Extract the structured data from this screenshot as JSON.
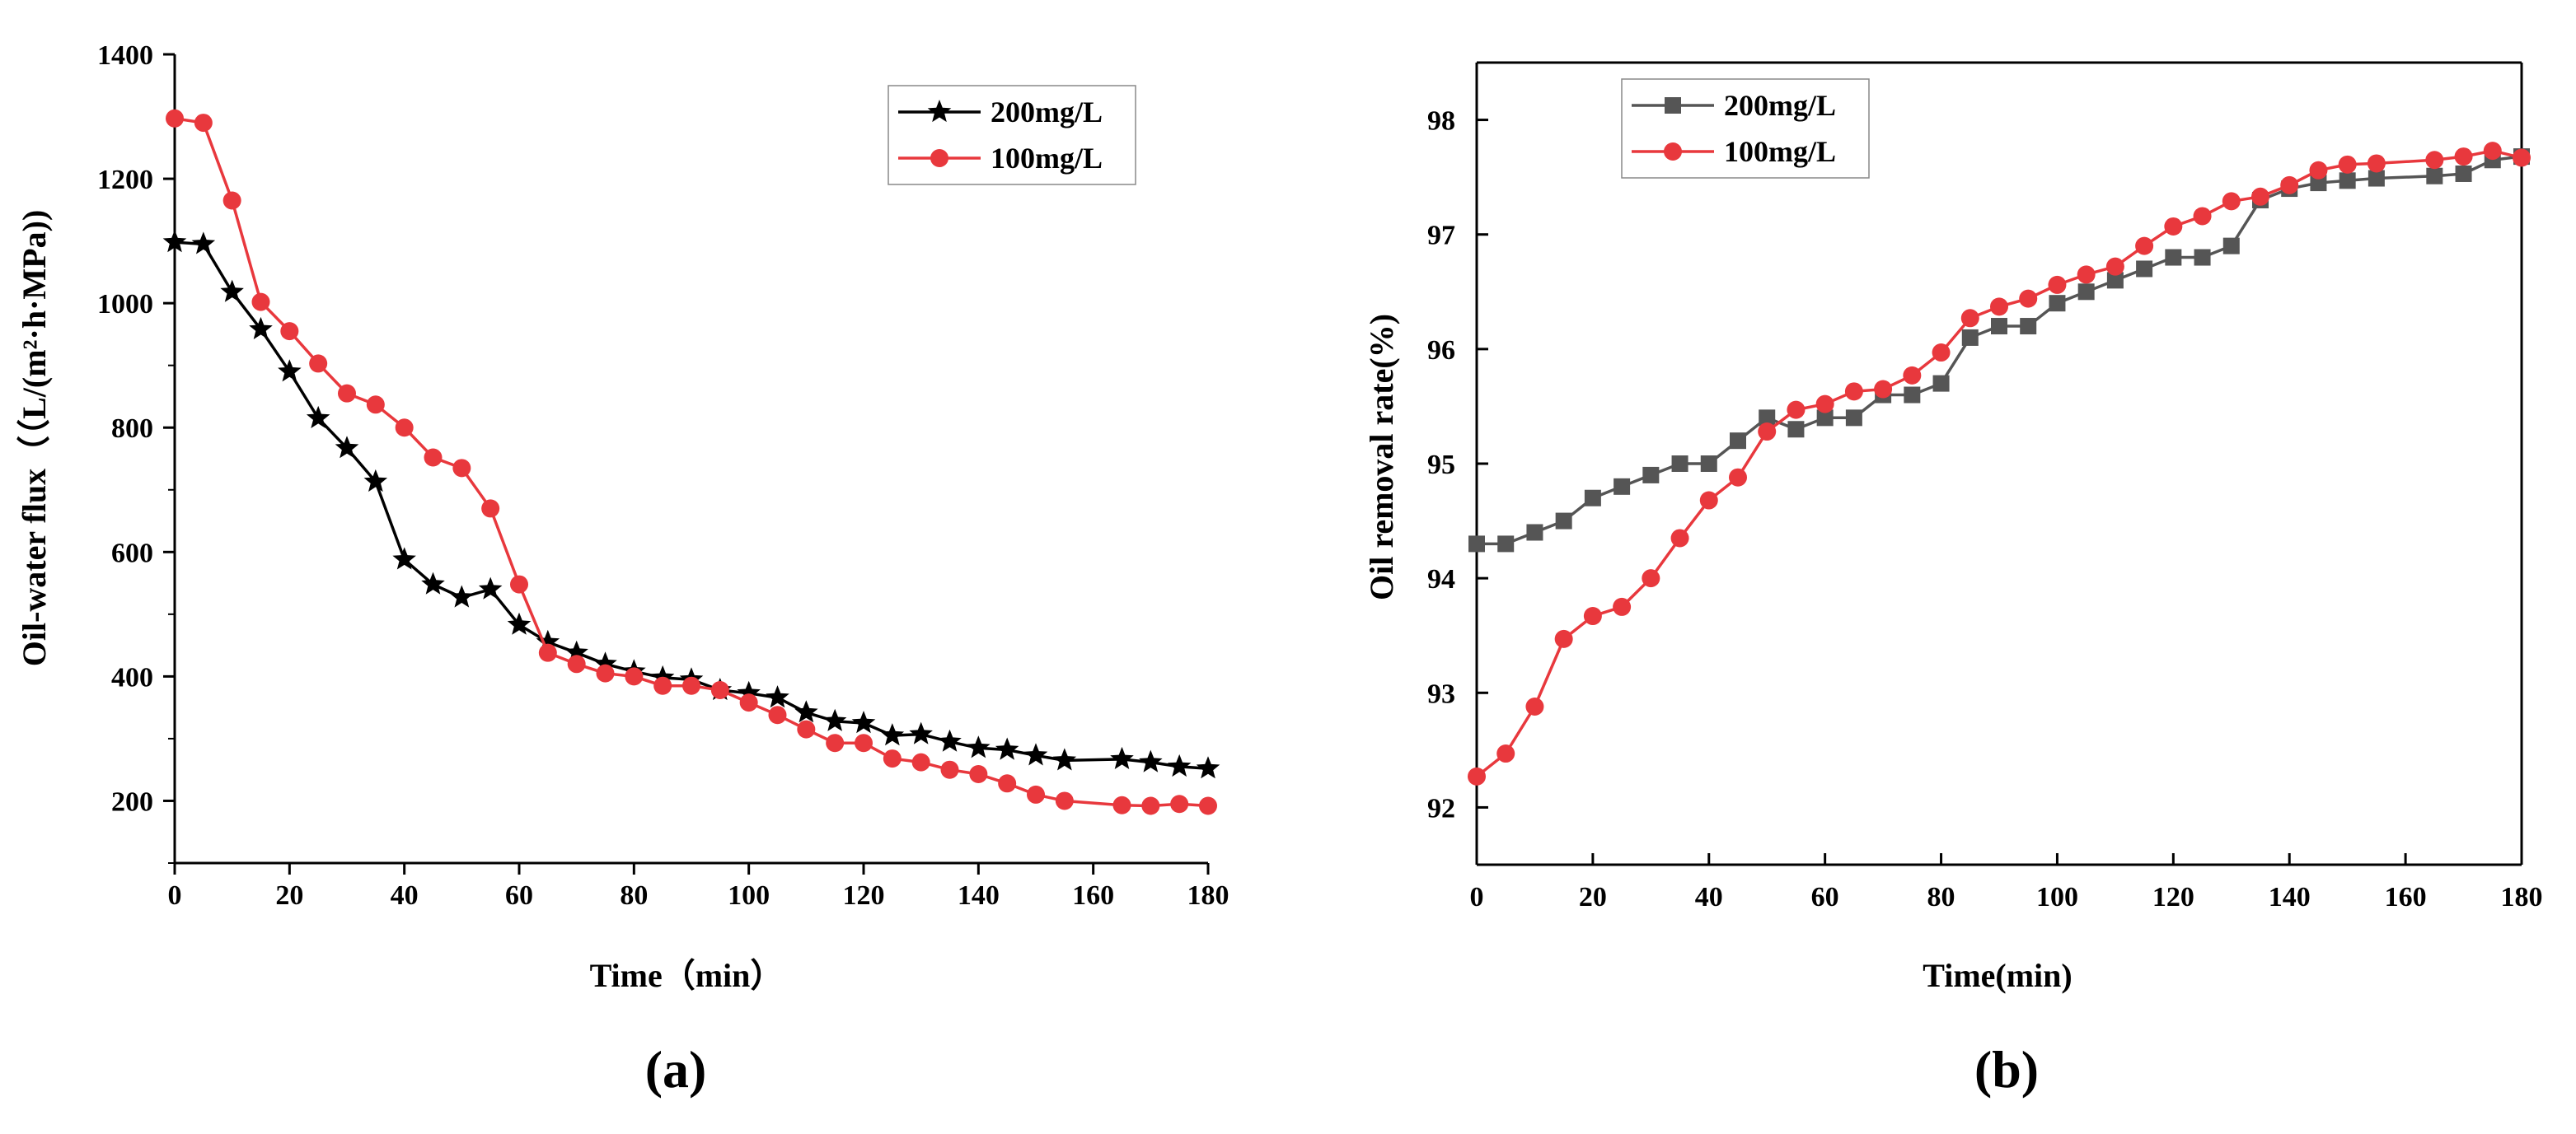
{
  "chart_data": [
    {
      "type": "line",
      "panel_label": "(a)",
      "xlabel": "Time（min）",
      "ylabel": "Oil-water flux（（L/(m²·h·MPa))",
      "xlim": [
        0,
        180
      ],
      "ylim": [
        100,
        1400
      ],
      "xticks": [
        "0",
        "20",
        "40",
        "60",
        "80",
        "100",
        "120",
        "140",
        "160",
        "180"
      ],
      "yticks": [
        "200",
        "400",
        "600",
        "800",
        "1000",
        "1200",
        "1400"
      ],
      "legend_position": "top-right",
      "grid": false,
      "series": [
        {
          "name": "200mg/L",
          "color": "#000000",
          "marker": "star",
          "points": [
            [
              0,
              1098
            ],
            [
              5,
              1095
            ],
            [
              10,
              1018
            ],
            [
              15,
              958
            ],
            [
              20,
              890
            ],
            [
              25,
              815
            ],
            [
              30,
              767
            ],
            [
              35,
              713
            ],
            [
              40,
              588
            ],
            [
              45,
              548
            ],
            [
              50,
              527
            ],
            [
              55,
              540
            ],
            [
              60,
              483
            ],
            [
              65,
              455
            ],
            [
              70,
              438
            ],
            [
              75,
              420
            ],
            [
              80,
              408
            ],
            [
              85,
              398
            ],
            [
              90,
              395
            ],
            [
              95,
              378
            ],
            [
              100,
              373
            ],
            [
              105,
              366
            ],
            [
              110,
              342
            ],
            [
              115,
              328
            ],
            [
              120,
              325
            ],
            [
              125,
              305
            ],
            [
              130,
              307
            ],
            [
              135,
              295
            ],
            [
              140,
              285
            ],
            [
              145,
              282
            ],
            [
              150,
              273
            ],
            [
              155,
              265
            ],
            [
              165,
              267
            ],
            [
              170,
              262
            ],
            [
              175,
              255
            ],
            [
              180,
              252
            ]
          ]
        },
        {
          "name": "100mg/L",
          "color": "#e8383d",
          "marker": "circle",
          "points": [
            [
              0,
              1297
            ],
            [
              5,
              1290
            ],
            [
              10,
              1165
            ],
            [
              15,
              1002
            ],
            [
              20,
              955
            ],
            [
              25,
              903
            ],
            [
              30,
              855
            ],
            [
              35,
              837
            ],
            [
              40,
              800
            ],
            [
              45,
              752
            ],
            [
              50,
              735
            ],
            [
              55,
              670
            ],
            [
              60,
              548
            ],
            [
              65,
              438
            ],
            [
              70,
              420
            ],
            [
              75,
              405
            ],
            [
              80,
              400
            ],
            [
              85,
              385
            ],
            [
              90,
              385
            ],
            [
              95,
              378
            ],
            [
              100,
              358
            ],
            [
              105,
              338
            ],
            [
              110,
              315
            ],
            [
              115,
              293
            ],
            [
              120,
              293
            ],
            [
              125,
              268
            ],
            [
              130,
              262
            ],
            [
              135,
              250
            ],
            [
              140,
              243
            ],
            [
              145,
              228
            ],
            [
              150,
              210
            ],
            [
              155,
              200
            ],
            [
              165,
              193
            ],
            [
              170,
              192
            ],
            [
              175,
              195
            ],
            [
              180,
              192
            ]
          ]
        }
      ]
    },
    {
      "type": "line",
      "panel_label": "(b)",
      "xlabel": "Time(min)",
      "ylabel": "Oil removal rate(%)",
      "xlim": [
        0,
        180
      ],
      "ylim": [
        91.5,
        98.5
      ],
      "xticks": [
        "0",
        "20",
        "40",
        "60",
        "80",
        "100",
        "120",
        "140",
        "160",
        "180"
      ],
      "yticks": [
        "92",
        "93",
        "94",
        "95",
        "96",
        "97",
        "98"
      ],
      "legend_position": "top-left",
      "grid": false,
      "series": [
        {
          "name": "200mg/L",
          "color": "#555555",
          "marker": "square",
          "points": [
            [
              0,
              94.3
            ],
            [
              5,
              94.3
            ],
            [
              10,
              94.4
            ],
            [
              15,
              94.5
            ],
            [
              20,
              94.7
            ],
            [
              25,
              94.8
            ],
            [
              30,
              94.9
            ],
            [
              35,
              95.0
            ],
            [
              40,
              95.0
            ],
            [
              45,
              95.2
            ],
            [
              50,
              95.4
            ],
            [
              55,
              95.3
            ],
            [
              60,
              95.4
            ],
            [
              65,
              95.4
            ],
            [
              70,
              95.6
            ],
            [
              75,
              95.6
            ],
            [
              80,
              95.7
            ],
            [
              85,
              96.1
            ],
            [
              90,
              96.2
            ],
            [
              95,
              96.2
            ],
            [
              100,
              96.4
            ],
            [
              105,
              96.5
            ],
            [
              110,
              96.6
            ],
            [
              115,
              96.7
            ],
            [
              120,
              96.8
            ],
            [
              125,
              96.8
            ],
            [
              130,
              96.9
            ],
            [
              135,
              97.3
            ],
            [
              140,
              97.4
            ],
            [
              145,
              97.45
            ],
            [
              150,
              97.47
            ],
            [
              155,
              97.49
            ],
            [
              165,
              97.51
            ],
            [
              170,
              97.53
            ],
            [
              175,
              97.65
            ],
            [
              180,
              97.68
            ]
          ]
        },
        {
          "name": "100mg/L",
          "color": "#e8383d",
          "marker": "circle",
          "points": [
            [
              0,
              92.27
            ],
            [
              5,
              92.47
            ],
            [
              10,
              92.88
            ],
            [
              15,
              93.47
            ],
            [
              20,
              93.67
            ],
            [
              25,
              93.75
            ],
            [
              30,
              94.0
            ],
            [
              35,
              94.35
            ],
            [
              40,
              94.68
            ],
            [
              45,
              94.88
            ],
            [
              50,
              95.28
            ],
            [
              55,
              95.47
            ],
            [
              60,
              95.52
            ],
            [
              65,
              95.63
            ],
            [
              70,
              95.65
            ],
            [
              75,
              95.77
            ],
            [
              80,
              95.97
            ],
            [
              85,
              96.27
            ],
            [
              90,
              96.37
            ],
            [
              95,
              96.44
            ],
            [
              100,
              96.56
            ],
            [
              105,
              96.65
            ],
            [
              110,
              96.72
            ],
            [
              115,
              96.9
            ],
            [
              120,
              97.07
            ],
            [
              125,
              97.16
            ],
            [
              130,
              97.29
            ],
            [
              135,
              97.33
            ],
            [
              140,
              97.43
            ],
            [
              145,
              97.56
            ],
            [
              150,
              97.61
            ],
            [
              155,
              97.62
            ],
            [
              165,
              97.65
            ],
            [
              170,
              97.68
            ],
            [
              175,
              97.73
            ],
            [
              180,
              97.67
            ]
          ]
        }
      ]
    }
  ]
}
